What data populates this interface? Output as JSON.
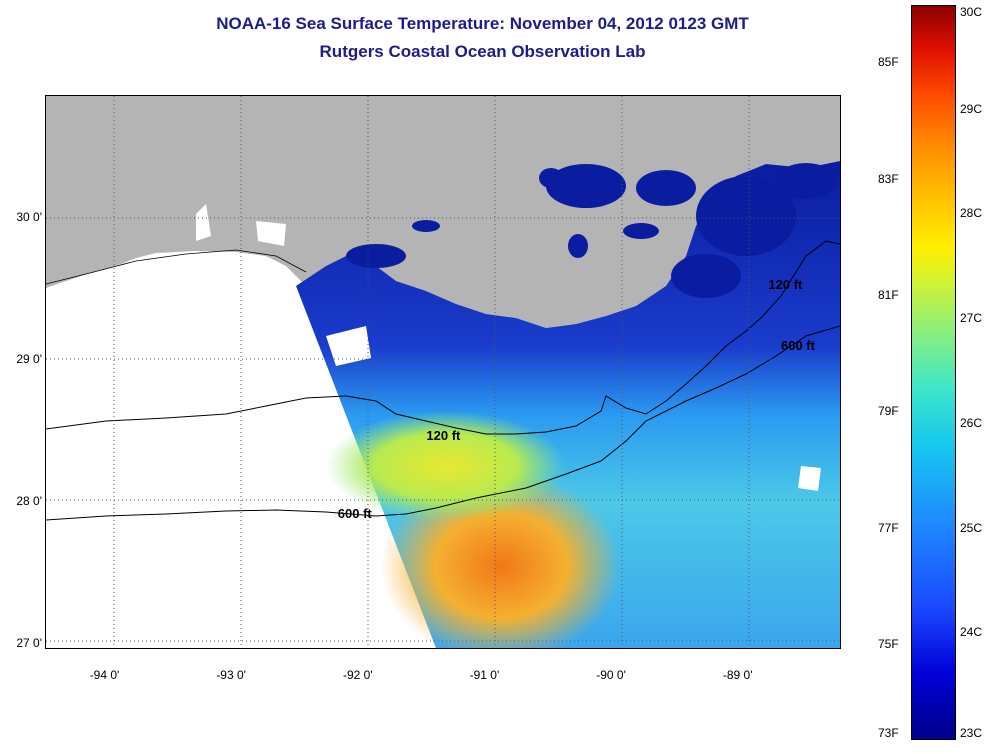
{
  "title": {
    "line1": "NOAA-16 Sea Surface Temperature:  November 04, 2012 0123 GMT",
    "line2": "Rutgers Coastal Ocean Observation Lab"
  },
  "map": {
    "lat_ticks": [
      {
        "label": "30 0'",
        "value": 30
      },
      {
        "label": "29 0'",
        "value": 29
      },
      {
        "label": "28 0'",
        "value": 28
      },
      {
        "label": "27 0'",
        "value": 27
      }
    ],
    "lon_ticks": [
      {
        "label": "-94 0'",
        "value": -94
      },
      {
        "label": "-93 0'",
        "value": -93
      },
      {
        "label": "-92 0'",
        "value": -92
      },
      {
        "label": "-91 0'",
        "value": -91
      },
      {
        "label": "-90 0'",
        "value": -90
      },
      {
        "label": "-89 0'",
        "value": -89
      }
    ],
    "lat_range": [
      26.98,
      30.87
    ],
    "lon_range": [
      -94.47,
      -88.2
    ],
    "contour_labels": [
      {
        "text": "120 ft",
        "lon": -91.3,
        "lat": 28.47
      },
      {
        "text": "600 ft",
        "lon": -92.0,
        "lat": 27.92
      },
      {
        "text": "120 ft",
        "lon": -88.6,
        "lat": 29.53
      },
      {
        "text": "600 ft",
        "lon": -88.5,
        "lat": 29.1
      }
    ],
    "colors": {
      "land": "#b4b4b4",
      "cold": "#0a1ca0",
      "warm": "#f08c1e"
    }
  },
  "colorbar": {
    "range_c": [
      23,
      30
    ],
    "labels_f": [
      {
        "label": "85F",
        "value": 85
      },
      {
        "label": "83F",
        "value": 83
      },
      {
        "label": "81F",
        "value": 81
      },
      {
        "label": "79F",
        "value": 79
      },
      {
        "label": "77F",
        "value": 77
      },
      {
        "label": "75F",
        "value": 75
      },
      {
        "label": "73F",
        "value": 73
      }
    ],
    "labels_c": [
      {
        "label": "30C",
        "value": 30
      },
      {
        "label": "29C",
        "value": 29
      },
      {
        "label": "28C",
        "value": 28
      },
      {
        "label": "27C",
        "value": 27
      },
      {
        "label": "26C",
        "value": 26
      },
      {
        "label": "25C",
        "value": 25
      },
      {
        "label": "24C",
        "value": 24
      },
      {
        "label": "23C",
        "value": 23
      }
    ]
  }
}
